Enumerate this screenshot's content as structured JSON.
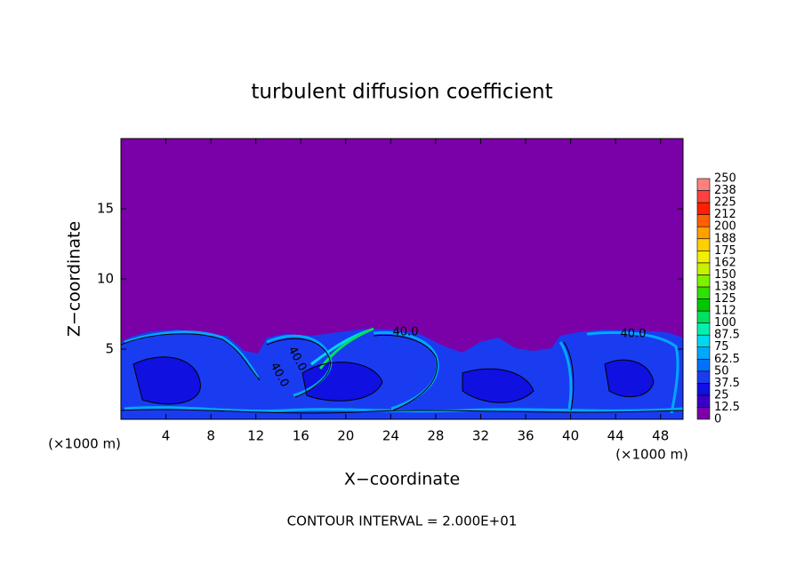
{
  "chart_data": {
    "type": "contour",
    "title": "turbulent diffusion coefficient",
    "xlabel": "X−coordinate",
    "ylabel": "Z−coordinate",
    "x_unit": "(×1000 m)",
    "footer": "CONTOUR INTERVAL = 2.000E+01",
    "xlim": [
      0,
      50
    ],
    "ylim": [
      0,
      20
    ],
    "xticks": [
      4,
      8,
      12,
      16,
      20,
      24,
      28,
      32,
      36,
      40,
      44,
      48
    ],
    "yticks": [
      5,
      10,
      15
    ],
    "contour_labels": [
      "40.0",
      "40.0",
      "40.0",
      "40.0"
    ],
    "colorbar": {
      "levels": [
        0,
        12.5,
        25,
        37.5,
        50,
        62.5,
        75,
        87.5,
        100,
        {
          "value": 112.5,
          "label": "112"
        },
        125,
        {
          "value": 137.5,
          "label": "138"
        },
        150,
        {
          "value": 162.5,
          "label": "162"
        },
        175,
        {
          "value": 187.5,
          "label": "188"
        },
        200,
        {
          "value": 212.5,
          "label": "212"
        },
        225,
        {
          "value": 237.5,
          "label": "238"
        },
        250
      ],
      "colors": [
        "#7a00a8",
        "#3a00c8",
        "#1010e0",
        "#1a3cf0",
        "#0070ff",
        "#00a8ff",
        "#00d8f0",
        "#00f0b0",
        "#00e060",
        "#00c800",
        "#30e000",
        "#80f000",
        "#c8f000",
        "#f0f000",
        "#ffd000",
        "#ffa000",
        "#ff6000",
        "#ff2000",
        "#ff4040",
        "#ff8080"
      ]
    }
  }
}
